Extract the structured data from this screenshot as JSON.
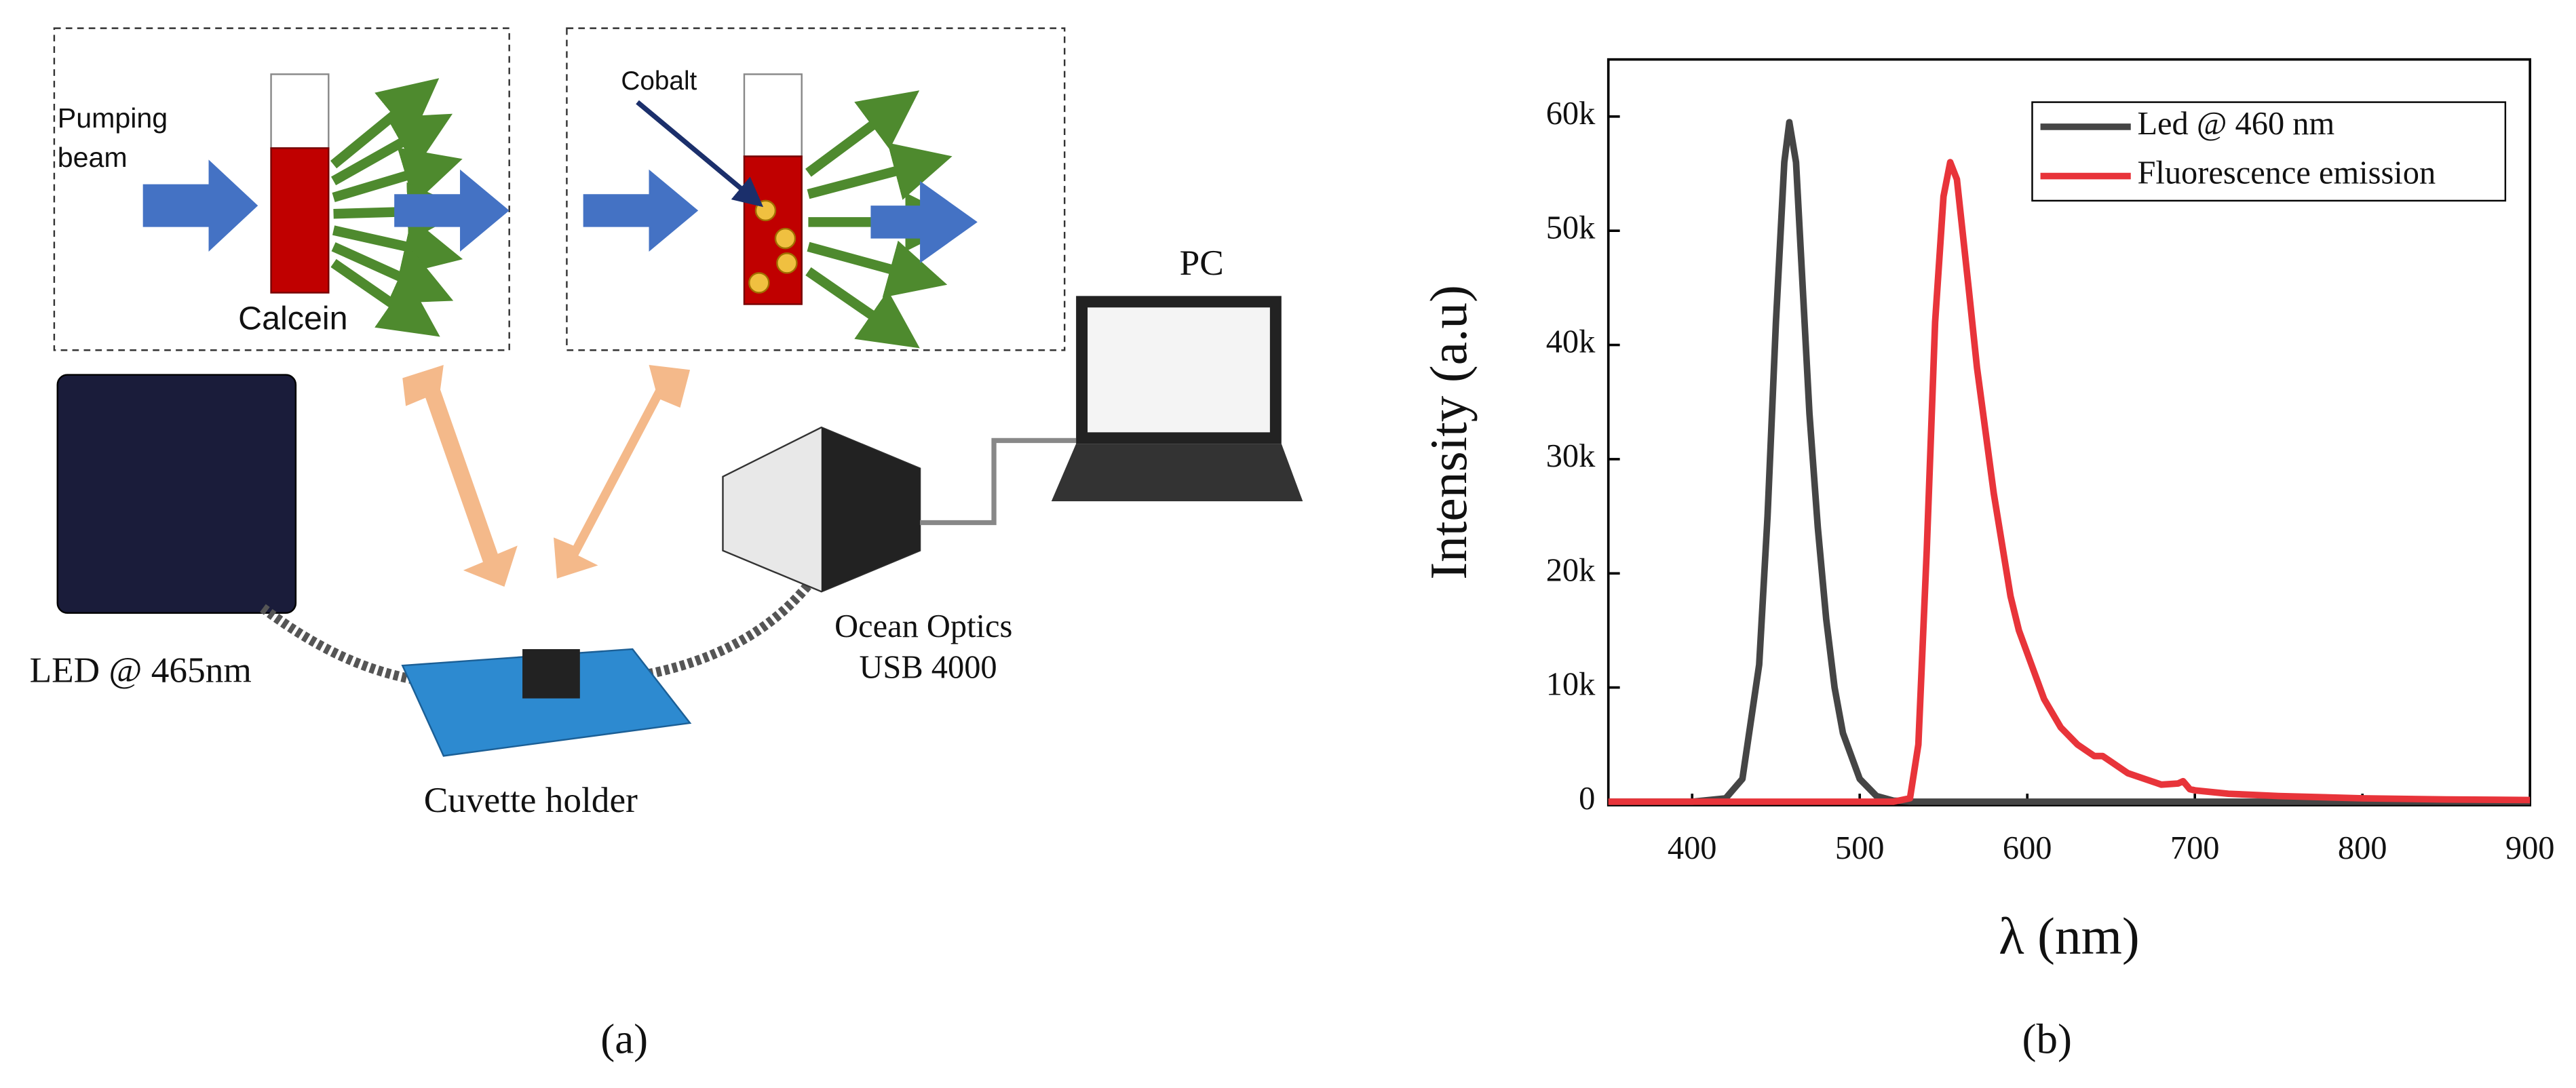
{
  "diagram": {
    "labels": {
      "pumping": "Pumping",
      "beam": "beam",
      "calcein": "Calcein",
      "cobalt": "Cobalt",
      "pc": "PC",
      "led": "LED @ 465nm",
      "ocean": "Ocean Optics",
      "usb": "USB 4000",
      "cuvette": "Cuvette holder"
    },
    "panel_a": "(a)",
    "panel_b": "(b)"
  },
  "chart_data": {
    "type": "line",
    "x_label": "λ (nm)",
    "y_label": "Intensity (a.u)",
    "x": [
      350,
      400,
      420,
      430,
      440,
      445,
      450,
      455,
      458,
      462,
      466,
      470,
      475,
      480,
      485,
      490,
      500,
      510,
      520,
      530,
      535,
      540,
      545,
      550,
      554,
      558,
      565,
      570,
      580,
      590,
      595,
      600,
      610,
      620,
      630,
      640,
      645,
      650,
      660,
      670,
      680,
      690,
      693,
      697,
      700,
      720,
      750,
      800,
      850,
      900
    ],
    "series": [
      {
        "name": "Led @ 460 nm",
        "color": "#454545",
        "values": [
          0,
          0,
          300,
          2000,
          12000,
          25000,
          42000,
          56000,
          59500,
          56000,
          45000,
          34000,
          24000,
          16000,
          10000,
          6000,
          2000,
          500,
          100,
          0,
          0,
          0,
          0,
          0,
          0,
          0,
          0,
          0,
          0,
          0,
          0,
          0,
          0,
          0,
          0,
          0,
          0,
          0,
          0,
          0,
          0,
          0,
          0,
          0,
          0,
          0,
          0,
          0,
          0,
          0
        ]
      },
      {
        "name": "Fluorescence emission",
        "color": "#e8343a",
        "values": [
          0,
          0,
          0,
          0,
          0,
          0,
          0,
          0,
          0,
          0,
          0,
          0,
          0,
          0,
          0,
          0,
          0,
          0,
          0,
          300,
          5000,
          22000,
          42000,
          53000,
          56000,
          54500,
          45000,
          38000,
          27000,
          18000,
          15000,
          13000,
          9000,
          6500,
          5000,
          4000,
          4000,
          3500,
          2500,
          2000,
          1500,
          1600,
          1800,
          1100,
          1000,
          700,
          500,
          300,
          200,
          150
        ]
      }
    ],
    "xlim": [
      350,
      900
    ],
    "xticks": [
      400,
      500,
      600,
      700,
      800,
      900
    ],
    "ylim": [
      -300,
      65000
    ],
    "yticks": [
      0,
      {
        "value": 10000,
        "label": "10k"
      },
      {
        "value": 20000,
        "label": "20k"
      },
      {
        "value": 30000,
        "label": "30k"
      },
      {
        "value": 40000,
        "label": "40k"
      },
      {
        "value": 50000,
        "label": "50k"
      },
      {
        "value": 60000,
        "label": "60k"
      }
    ],
    "grid": false,
    "legend": "top-right"
  }
}
